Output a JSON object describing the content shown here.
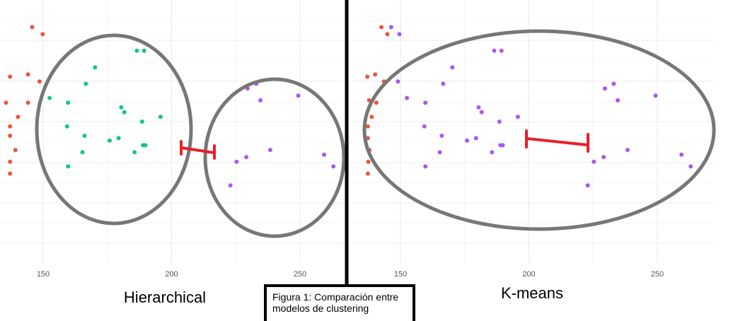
{
  "caption": "Figura 1: Comparación entre modelos de clustering",
  "colors": {
    "grid": "#ebebeb",
    "red_cluster": "#e8573f",
    "green_cluster": "#11c48f",
    "purple_cluster": "#a65af0",
    "ellipse": "#777777",
    "distance_marker": "#e8202a",
    "divider": "#000000"
  },
  "chart_data": [
    {
      "type": "scatter",
      "title": "Hierarchical",
      "xlabel": "",
      "ylabel": "",
      "xlim": [
        135,
        262
      ],
      "ylim": [
        0,
        10
      ],
      "x_ticks": [
        150,
        200,
        250
      ],
      "grid": true,
      "series": [
        {
          "color": "#e8573f",
          "points": [
            [
              145.7,
              9.3
            ],
            [
              149.8,
              9.0
            ],
            [
              137.1,
              7.2
            ],
            [
              144.1,
              7.3
            ],
            [
              148.6,
              7.0
            ],
            [
              135.5,
              6.1
            ],
            [
              144.1,
              6.1
            ],
            [
              140.2,
              5.5
            ],
            [
              137.1,
              5.1
            ],
            [
              137.1,
              4.7
            ],
            [
              139.2,
              4.1
            ],
            [
              137.1,
              3.6
            ],
            [
              137.1,
              3.1
            ]
          ]
        },
        {
          "color": "#11c48f",
          "points": [
            [
              186.5,
              8.3
            ],
            [
              189.3,
              8.3
            ],
            [
              170.2,
              7.6
            ],
            [
              166.6,
              6.9
            ],
            [
              152.5,
              6.3
            ],
            [
              159.7,
              6.1
            ],
            [
              180.4,
              5.9
            ],
            [
              181.6,
              5.7
            ],
            [
              195.7,
              5.5
            ],
            [
              188.5,
              5.3
            ],
            [
              159.3,
              5.1
            ],
            [
              166.1,
              4.7
            ],
            [
              179.4,
              4.6
            ],
            [
              175.9,
              4.5
            ],
            [
              188.9,
              4.3
            ],
            [
              189.8,
              4.3
            ],
            [
              165.3,
              4.0
            ],
            [
              185.6,
              4.0
            ],
            [
              159.7,
              3.4
            ]
          ]
        },
        {
          "color": "#a65af0",
          "points": [
            [
              233.0,
              6.9
            ],
            [
              229.6,
              6.7
            ],
            [
              249.3,
              6.4
            ],
            [
              234.6,
              6.2
            ],
            [
              238.4,
              4.1
            ],
            [
              259.4,
              3.9
            ],
            [
              229.1,
              3.8
            ],
            [
              225.3,
              3.6
            ],
            [
              263.0,
              3.4
            ],
            [
              222.9,
              2.6
            ]
          ]
        }
      ]
    },
    {
      "type": "scatter",
      "title": "K-means",
      "xlabel": "",
      "ylabel": "",
      "xlim": [
        135,
        262
      ],
      "ylim": [
        0,
        10
      ],
      "x_ticks": [
        150,
        200,
        250
      ],
      "grid": true,
      "series": [
        {
          "color": "#e8573f",
          "points": [
            [
              142.6,
              9.3
            ],
            [
              144.9,
              9.0
            ],
            [
              137.1,
              7.2
            ],
            [
              140.1,
              7.3
            ],
            [
              143.6,
              7.0
            ],
            [
              137.8,
              6.2
            ],
            [
              140.6,
              6.1
            ],
            [
              138.8,
              5.5
            ],
            [
              137.3,
              5.1
            ],
            [
              137.3,
              4.6
            ],
            [
              137.9,
              4.1
            ],
            [
              137.5,
              3.6
            ],
            [
              137.3,
              3.1
            ]
          ]
        },
        {
          "color": "#a65af0",
          "points": [
            [
              146.4,
              9.3
            ],
            [
              149.6,
              9.0
            ],
            [
              186.5,
              8.3
            ],
            [
              189.3,
              8.3
            ],
            [
              170.2,
              7.6
            ],
            [
              166.6,
              6.9
            ],
            [
              149.0,
              7.0
            ],
            [
              152.5,
              6.3
            ],
            [
              159.7,
              6.1
            ],
            [
              180.4,
              5.9
            ],
            [
              181.6,
              5.7
            ],
            [
              195.7,
              5.5
            ],
            [
              188.5,
              5.3
            ],
            [
              159.3,
              5.1
            ],
            [
              166.1,
              4.7
            ],
            [
              179.4,
              4.6
            ],
            [
              175.9,
              4.5
            ],
            [
              188.9,
              4.3
            ],
            [
              189.8,
              4.3
            ],
            [
              165.3,
              4.0
            ],
            [
              185.6,
              4.0
            ],
            [
              159.7,
              3.4
            ],
            [
              233.0,
              6.9
            ],
            [
              229.6,
              6.7
            ],
            [
              249.3,
              6.4
            ],
            [
              234.6,
              6.2
            ],
            [
              238.4,
              4.1
            ],
            [
              259.4,
              3.9
            ],
            [
              229.1,
              3.8
            ],
            [
              225.3,
              3.6
            ],
            [
              263.0,
              3.4
            ],
            [
              222.9,
              2.6
            ]
          ]
        }
      ]
    }
  ]
}
